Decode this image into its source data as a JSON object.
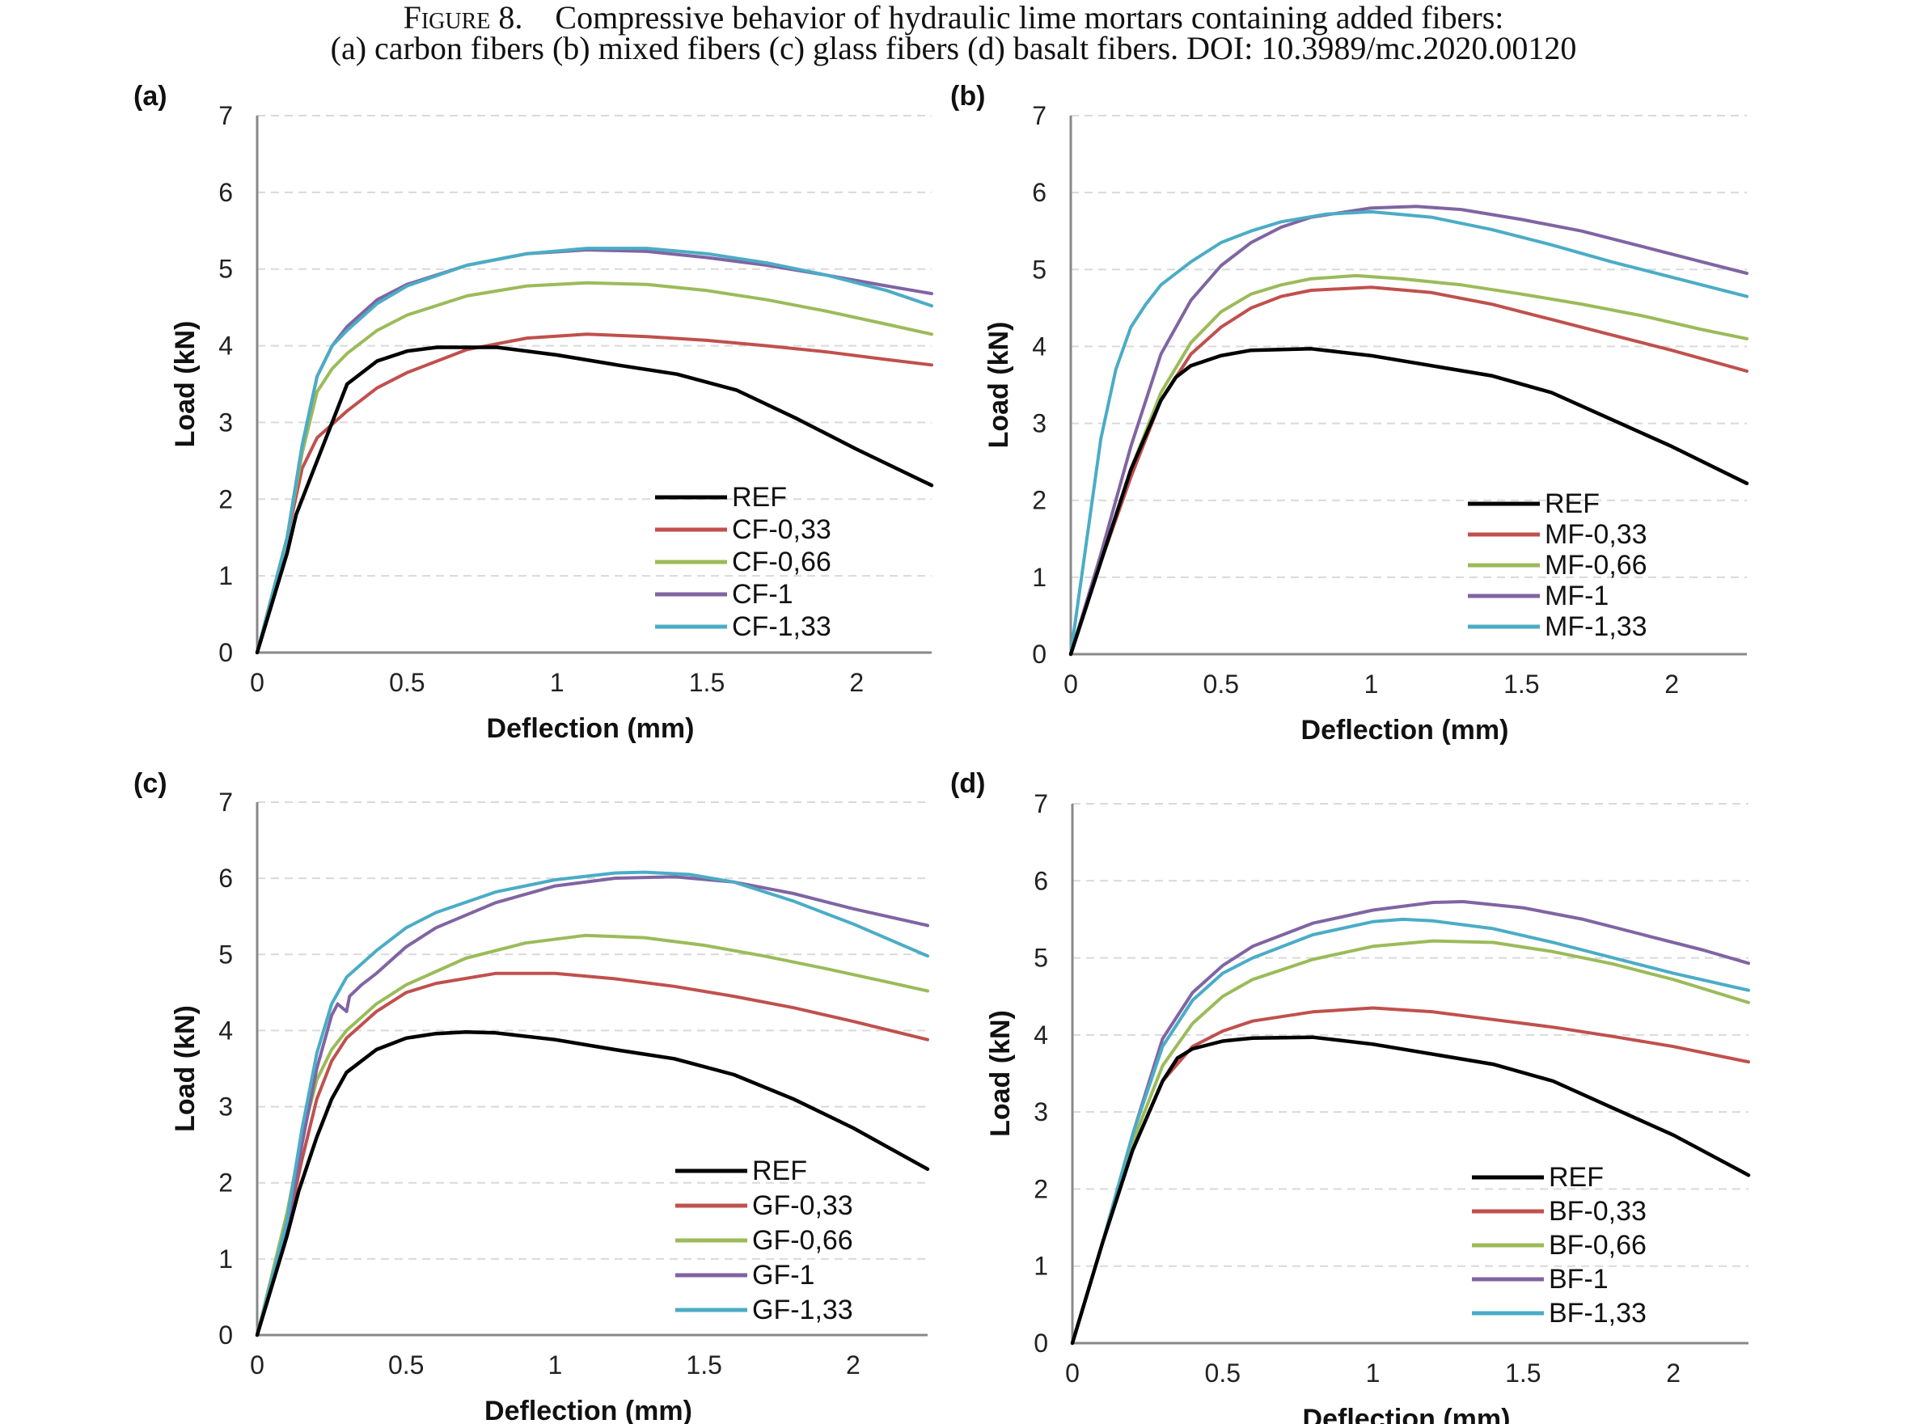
{
  "caption": {
    "figure_label": "Figure 8.",
    "line1": "Compressive behavior of hydraulic lime mortars containing added fibers:",
    "line2": "(a) carbon fibers (b) mixed fibers (c) glass fibers (d) basalt fibers. DOI: 10.3989/mc.2020.00120"
  },
  "colors": {
    "REF": "#000000",
    "red": "#c0504d",
    "green": "#9bbb59",
    "purple": "#8064a2",
    "cyan": "#4bacc6",
    "grid": "#d9d9d9",
    "axis": "#888888"
  },
  "chart_data": [
    {
      "type": "line",
      "panel_label": "(a)",
      "xlabel": "Deflection (mm)",
      "ylabel": "Load (kN)",
      "xlim": [
        0,
        2.25
      ],
      "ylim": [
        0,
        7
      ],
      "xticks": [
        "0",
        "0.5",
        "1",
        "1.5",
        "2"
      ],
      "yticks": [
        "0",
        "1",
        "2",
        "3",
        "4",
        "5",
        "6",
        "7"
      ],
      "grid": "horizontal dashed",
      "legend_position": "bottom-right",
      "series": [
        {
          "name": "REF",
          "color": "#000000",
          "x": [
            0,
            0.1,
            0.13,
            0.2,
            0.25,
            0.3,
            0.4,
            0.5,
            0.6,
            0.8,
            1.0,
            1.2,
            1.4,
            1.6,
            1.8,
            2.0,
            2.25
          ],
          "y": [
            0,
            1.3,
            1.8,
            2.5,
            3.0,
            3.5,
            3.8,
            3.93,
            3.98,
            3.98,
            3.88,
            3.75,
            3.63,
            3.42,
            3.05,
            2.65,
            2.18
          ]
        },
        {
          "name": "CF-0,33",
          "color": "#c0504d",
          "x": [
            0,
            0.1,
            0.15,
            0.2,
            0.3,
            0.4,
            0.5,
            0.7,
            0.9,
            1.1,
            1.3,
            1.5,
            1.7,
            1.9,
            2.1,
            2.25
          ],
          "y": [
            0,
            1.5,
            2.4,
            2.8,
            3.15,
            3.45,
            3.65,
            3.95,
            4.1,
            4.15,
            4.12,
            4.07,
            4.0,
            3.92,
            3.82,
            3.75
          ]
        },
        {
          "name": "CF-0,66",
          "color": "#9bbb59",
          "x": [
            0,
            0.1,
            0.15,
            0.2,
            0.25,
            0.3,
            0.4,
            0.5,
            0.7,
            0.9,
            1.1,
            1.3,
            1.5,
            1.7,
            1.9,
            2.1,
            2.25
          ],
          "y": [
            0,
            1.5,
            2.6,
            3.4,
            3.7,
            3.9,
            4.2,
            4.4,
            4.65,
            4.78,
            4.82,
            4.8,
            4.72,
            4.6,
            4.45,
            4.28,
            4.15
          ]
        },
        {
          "name": "CF-1",
          "color": "#8064a2",
          "x": [
            0,
            0.1,
            0.15,
            0.2,
            0.25,
            0.3,
            0.4,
            0.5,
            0.7,
            0.9,
            1.1,
            1.3,
            1.5,
            1.7,
            1.9,
            2.1,
            2.25
          ],
          "y": [
            0,
            1.5,
            2.7,
            3.6,
            4.0,
            4.25,
            4.6,
            4.8,
            5.05,
            5.2,
            5.25,
            5.23,
            5.15,
            5.05,
            4.92,
            4.78,
            4.68
          ]
        },
        {
          "name": "CF-1,33",
          "color": "#4bacc6",
          "x": [
            0,
            0.1,
            0.15,
            0.2,
            0.25,
            0.3,
            0.4,
            0.5,
            0.7,
            0.9,
            1.1,
            1.3,
            1.5,
            1.7,
            1.9,
            2.1,
            2.25
          ],
          "y": [
            0,
            1.5,
            2.7,
            3.6,
            4.0,
            4.2,
            4.55,
            4.78,
            5.05,
            5.2,
            5.27,
            5.27,
            5.2,
            5.08,
            4.92,
            4.72,
            4.52
          ]
        }
      ]
    },
    {
      "type": "line",
      "panel_label": "(b)",
      "xlabel": "Deflection (mm)",
      "ylabel": "Load (kN)",
      "xlim": [
        0,
        2.25
      ],
      "ylim": [
        0,
        7
      ],
      "xticks": [
        "0",
        "0.5",
        "1",
        "1.5",
        "2"
      ],
      "yticks": [
        "0",
        "1",
        "2",
        "3",
        "4",
        "5",
        "6",
        "7"
      ],
      "grid": "horizontal dashed",
      "legend_position": "bottom-right",
      "series": [
        {
          "name": "REF",
          "color": "#000000",
          "x": [
            0,
            0.1,
            0.2,
            0.3,
            0.35,
            0.4,
            0.5,
            0.6,
            0.8,
            1.0,
            1.2,
            1.4,
            1.6,
            1.8,
            2.0,
            2.25
          ],
          "y": [
            0,
            1.2,
            2.4,
            3.3,
            3.6,
            3.75,
            3.88,
            3.95,
            3.97,
            3.88,
            3.75,
            3.62,
            3.4,
            3.05,
            2.7,
            2.22
          ]
        },
        {
          "name": "MF-0,33",
          "color": "#c0504d",
          "x": [
            0,
            0.1,
            0.2,
            0.3,
            0.4,
            0.5,
            0.6,
            0.7,
            0.8,
            1.0,
            1.2,
            1.4,
            1.6,
            1.8,
            2.0,
            2.25
          ],
          "y": [
            0,
            1.2,
            2.3,
            3.3,
            3.9,
            4.25,
            4.5,
            4.65,
            4.73,
            4.77,
            4.7,
            4.55,
            4.35,
            4.15,
            3.95,
            3.68
          ]
        },
        {
          "name": "MF-0,66",
          "color": "#9bbb59",
          "x": [
            0,
            0.1,
            0.2,
            0.3,
            0.4,
            0.5,
            0.6,
            0.7,
            0.8,
            0.95,
            1.1,
            1.3,
            1.5,
            1.7,
            1.9,
            2.1,
            2.25
          ],
          "y": [
            0,
            1.2,
            2.4,
            3.4,
            4.05,
            4.45,
            4.68,
            4.8,
            4.88,
            4.92,
            4.88,
            4.8,
            4.68,
            4.55,
            4.4,
            4.22,
            4.1
          ]
        },
        {
          "name": "MF-1",
          "color": "#8064a2",
          "x": [
            0,
            0.1,
            0.2,
            0.3,
            0.4,
            0.5,
            0.6,
            0.7,
            0.8,
            1.0,
            1.15,
            1.3,
            1.5,
            1.7,
            1.9,
            2.1,
            2.25
          ],
          "y": [
            0,
            1.3,
            2.7,
            3.9,
            4.6,
            5.05,
            5.35,
            5.55,
            5.68,
            5.8,
            5.82,
            5.78,
            5.65,
            5.5,
            5.3,
            5.1,
            4.95
          ]
        },
        {
          "name": "MF-1,33",
          "color": "#4bacc6",
          "x": [
            0,
            0.05,
            0.1,
            0.15,
            0.2,
            0.25,
            0.3,
            0.4,
            0.5,
            0.6,
            0.7,
            0.85,
            1.0,
            1.2,
            1.4,
            1.6,
            1.8,
            2.0,
            2.25
          ],
          "y": [
            0,
            1.4,
            2.8,
            3.7,
            4.25,
            4.55,
            4.8,
            5.1,
            5.35,
            5.5,
            5.62,
            5.72,
            5.75,
            5.68,
            5.52,
            5.32,
            5.1,
            4.9,
            4.65
          ]
        }
      ]
    },
    {
      "type": "line",
      "panel_label": "(c)",
      "xlabel": "Deflection (mm)",
      "ylabel": "Load  (kN)",
      "xlim": [
        0,
        2.25
      ],
      "ylim": [
        0,
        7
      ],
      "xticks": [
        "0",
        "0.5",
        "1",
        "1.5",
        "2"
      ],
      "yticks": [
        "0",
        "1",
        "2",
        "3",
        "4",
        "5",
        "6",
        "7"
      ],
      "grid": "horizontal dashed",
      "legend_position": "bottom-right",
      "series": [
        {
          "name": "REF",
          "color": "#000000",
          "x": [
            0,
            0.1,
            0.14,
            0.2,
            0.25,
            0.3,
            0.4,
            0.5,
            0.6,
            0.7,
            0.8,
            1.0,
            1.2,
            1.4,
            1.6,
            1.8,
            2.0,
            2.25
          ],
          "y": [
            0,
            1.3,
            1.9,
            2.6,
            3.1,
            3.45,
            3.75,
            3.9,
            3.96,
            3.98,
            3.97,
            3.88,
            3.75,
            3.63,
            3.42,
            3.1,
            2.72,
            2.18
          ]
        },
        {
          "name": "GF-0,33",
          "color": "#c0504d",
          "x": [
            0,
            0.1,
            0.15,
            0.2,
            0.25,
            0.3,
            0.4,
            0.5,
            0.6,
            0.8,
            1.0,
            1.2,
            1.4,
            1.6,
            1.8,
            2.0,
            2.25
          ],
          "y": [
            0,
            1.4,
            2.3,
            3.1,
            3.6,
            3.9,
            4.25,
            4.5,
            4.62,
            4.75,
            4.75,
            4.68,
            4.58,
            4.45,
            4.3,
            4.12,
            3.88
          ]
        },
        {
          "name": "GF-0,66",
          "color": "#9bbb59",
          "x": [
            0,
            0.1,
            0.15,
            0.2,
            0.25,
            0.3,
            0.4,
            0.5,
            0.7,
            0.9,
            1.1,
            1.3,
            1.5,
            1.7,
            1.9,
            2.1,
            2.25
          ],
          "y": [
            0,
            1.6,
            2.6,
            3.35,
            3.75,
            4.0,
            4.35,
            4.6,
            4.95,
            5.15,
            5.25,
            5.22,
            5.12,
            4.98,
            4.82,
            4.65,
            4.52
          ]
        },
        {
          "name": "GF-1",
          "color": "#8064a2",
          "x": [
            0,
            0.1,
            0.15,
            0.2,
            0.25,
            0.27,
            0.3,
            0.31,
            0.35,
            0.4,
            0.5,
            0.6,
            0.8,
            1.0,
            1.2,
            1.4,
            1.6,
            1.8,
            2.0,
            2.25
          ],
          "y": [
            0,
            1.4,
            2.5,
            3.5,
            4.2,
            4.35,
            4.25,
            4.45,
            4.6,
            4.75,
            5.1,
            5.35,
            5.68,
            5.9,
            6.0,
            6.02,
            5.95,
            5.8,
            5.6,
            5.38
          ]
        },
        {
          "name": "GF-1,33",
          "color": "#4bacc6",
          "x": [
            0,
            0.1,
            0.15,
            0.2,
            0.25,
            0.3,
            0.4,
            0.5,
            0.6,
            0.8,
            1.0,
            1.2,
            1.3,
            1.45,
            1.6,
            1.8,
            2.0,
            2.25
          ],
          "y": [
            0,
            1.5,
            2.7,
            3.7,
            4.35,
            4.7,
            5.05,
            5.35,
            5.55,
            5.82,
            5.98,
            6.07,
            6.08,
            6.05,
            5.95,
            5.7,
            5.4,
            4.98
          ]
        }
      ]
    },
    {
      "type": "line",
      "panel_label": "(d)",
      "xlabel": "Deflection (mm)",
      "ylabel": "Load (kN)",
      "xlim": [
        0,
        2.25
      ],
      "ylim": [
        0,
        7
      ],
      "xticks": [
        "0",
        "0.5",
        "1",
        "1.5",
        "2"
      ],
      "yticks": [
        "0",
        "1",
        "2",
        "3",
        "4",
        "5",
        "6",
        "7"
      ],
      "grid": "horizontal dashed",
      "legend_position": "bottom-right",
      "series": [
        {
          "name": "REF",
          "color": "#000000",
          "x": [
            0,
            0.1,
            0.2,
            0.3,
            0.35,
            0.4,
            0.5,
            0.6,
            0.8,
            1.0,
            1.2,
            1.4,
            1.6,
            1.8,
            2.0,
            2.25
          ],
          "y": [
            0,
            1.3,
            2.5,
            3.4,
            3.7,
            3.82,
            3.92,
            3.96,
            3.97,
            3.88,
            3.75,
            3.62,
            3.4,
            3.05,
            2.7,
            2.18
          ]
        },
        {
          "name": "BF-0,33",
          "color": "#c0504d",
          "x": [
            0,
            0.1,
            0.2,
            0.3,
            0.4,
            0.5,
            0.6,
            0.8,
            1.0,
            1.2,
            1.4,
            1.6,
            1.8,
            2.0,
            2.25
          ],
          "y": [
            0,
            1.3,
            2.5,
            3.4,
            3.85,
            4.05,
            4.18,
            4.3,
            4.35,
            4.3,
            4.2,
            4.1,
            3.98,
            3.85,
            3.65
          ]
        },
        {
          "name": "BF-0,66",
          "color": "#9bbb59",
          "x": [
            0,
            0.1,
            0.2,
            0.3,
            0.4,
            0.5,
            0.6,
            0.8,
            1.0,
            1.2,
            1.4,
            1.6,
            1.8,
            2.0,
            2.25
          ],
          "y": [
            0,
            1.3,
            2.6,
            3.6,
            4.15,
            4.5,
            4.72,
            4.98,
            5.15,
            5.22,
            5.2,
            5.08,
            4.92,
            4.72,
            4.42
          ]
        },
        {
          "name": "BF-1",
          "color": "#8064a2",
          "x": [
            0,
            0.1,
            0.2,
            0.3,
            0.4,
            0.5,
            0.6,
            0.8,
            1.0,
            1.2,
            1.3,
            1.5,
            1.7,
            1.9,
            2.1,
            2.25
          ],
          "y": [
            0,
            1.3,
            2.7,
            3.95,
            4.55,
            4.9,
            5.15,
            5.45,
            5.62,
            5.72,
            5.73,
            5.65,
            5.5,
            5.3,
            5.1,
            4.93
          ]
        },
        {
          "name": "BF-1,33",
          "color": "#4bacc6",
          "x": [
            0,
            0.1,
            0.2,
            0.3,
            0.4,
            0.5,
            0.6,
            0.8,
            1.0,
            1.1,
            1.2,
            1.4,
            1.6,
            1.8,
            2.0,
            2.25
          ],
          "y": [
            0,
            1.3,
            2.7,
            3.85,
            4.45,
            4.8,
            5.0,
            5.3,
            5.47,
            5.5,
            5.48,
            5.38,
            5.2,
            5.0,
            4.8,
            4.58
          ]
        }
      ]
    }
  ]
}
